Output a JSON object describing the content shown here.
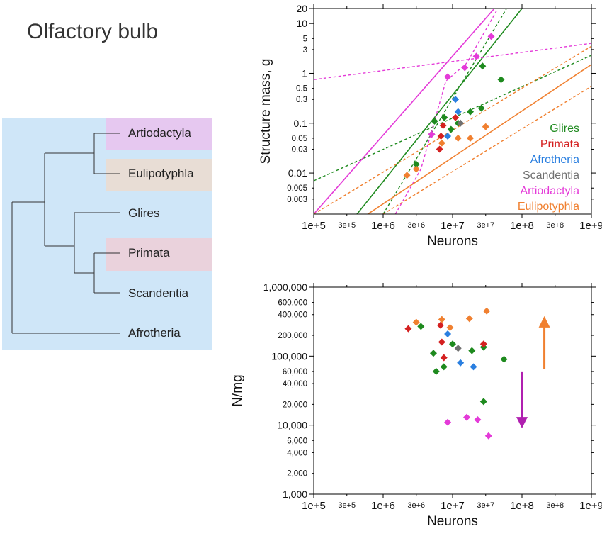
{
  "title": "Olfactory bulb",
  "tree": {
    "taxa": [
      "Artiodactyla",
      "Eulipotyphla",
      "Glires",
      "Primata",
      "Scandentia",
      "Afrotheria"
    ],
    "highlight_colors": {
      "Artiodactyla": "#e6c8f0",
      "Eulipotyphla": "#e8ddd5",
      "Primata": "#ead2dc"
    },
    "background": "#cfe6f8"
  },
  "chart_data": [
    {
      "type": "scatter",
      "id": "mass",
      "xlabel": "Neurons",
      "ylabel": "Structure mass, g",
      "xscale": "log",
      "yscale": "log",
      "xlim": [
        100000,
        1000000000
      ],
      "ylim": [
        0.0015,
        20
      ],
      "xticks": [
        {
          "v": 100000,
          "label": "1e+5",
          "major": true
        },
        {
          "v": 300000,
          "label": "3e+5",
          "major": false
        },
        {
          "v": 1000000,
          "label": "1e+6",
          "major": true
        },
        {
          "v": 3000000,
          "label": "3e+6",
          "major": false
        },
        {
          "v": 10000000,
          "label": "1e+7",
          "major": true
        },
        {
          "v": 30000000,
          "label": "3e+7",
          "major": false
        },
        {
          "v": 100000000,
          "label": "1e+8",
          "major": true
        },
        {
          "v": 300000000,
          "label": "3e+8",
          "major": false
        },
        {
          "v": 1000000000,
          "label": "1e+9",
          "major": true
        }
      ],
      "yticks": [
        {
          "v": 20,
          "label": "20",
          "major": true
        },
        {
          "v": 10,
          "label": "10",
          "major": true
        },
        {
          "v": 5,
          "label": "5",
          "major": false
        },
        {
          "v": 3,
          "label": "3",
          "major": false
        },
        {
          "v": 1,
          "label": "1",
          "major": true
        },
        {
          "v": 0.5,
          "label": "0.5",
          "major": false
        },
        {
          "v": 0.3,
          "label": "0.3",
          "major": false
        },
        {
          "v": 0.1,
          "label": "0.1",
          "major": true
        },
        {
          "v": 0.05,
          "label": "0.05",
          "major": false
        },
        {
          "v": 0.03,
          "label": "0.03",
          "major": false
        },
        {
          "v": 0.01,
          "label": "0.01",
          "major": true
        },
        {
          "v": 0.005,
          "label": "0.005",
          "major": false
        },
        {
          "v": 0.003,
          "label": "0.003",
          "major": false
        }
      ],
      "legend": {
        "position": "right",
        "entries": [
          {
            "name": "Glires",
            "color": "#1e8a1e"
          },
          {
            "name": "Primata",
            "color": "#d42020"
          },
          {
            "name": "Afrotheria",
            "color": "#2a7fe0"
          },
          {
            "name": "Scandentia",
            "color": "#707070"
          },
          {
            "name": "Artiodactyla",
            "color": "#e43ad8"
          },
          {
            "name": "Eulipotyphla",
            "color": "#f08030"
          }
        ]
      },
      "series": [
        {
          "name": "Glires",
          "color": "#1e8a1e",
          "points": [
            [
              3000000,
              0.015
            ],
            [
              5000000,
              0.06
            ],
            [
              5500000,
              0.11
            ],
            [
              7600000,
              0.13
            ],
            [
              9500000,
              0.075
            ],
            [
              12000000,
              0.1
            ],
            [
              18000000,
              0.17
            ],
            [
              26000000,
              0.2
            ],
            [
              27000000,
              1.4
            ],
            [
              50000000,
              0.75
            ]
          ]
        },
        {
          "name": "Primata",
          "color": "#d42020",
          "points": [
            [
              6500000,
              0.03
            ],
            [
              6800000,
              0.055
            ],
            [
              7300000,
              0.09
            ],
            [
              11000000,
              0.13
            ]
          ]
        },
        {
          "name": "Afrotheria",
          "color": "#2a7fe0",
          "points": [
            [
              8500000,
              0.055
            ],
            [
              11000000,
              0.3
            ],
            [
              12000000,
              0.17
            ]
          ]
        },
        {
          "name": "Scandentia",
          "color": "#707070",
          "points": [
            [
              13000000,
              0.1
            ]
          ]
        },
        {
          "name": "Artiodactyla",
          "color": "#e43ad8",
          "points": [
            [
              5000000,
              0.06
            ],
            [
              8500000,
              0.85
            ],
            [
              15000000,
              1.3
            ],
            [
              22000000,
              2.2
            ],
            [
              36000000,
              5.5
            ]
          ]
        },
        {
          "name": "Eulipotyphla",
          "color": "#f08030",
          "points": [
            [
              2200000,
              0.009
            ],
            [
              3000000,
              0.012
            ],
            [
              7000000,
              0.04
            ],
            [
              12000000,
              0.05
            ],
            [
              18000000,
              0.05
            ],
            [
              30000000,
              0.085
            ]
          ]
        }
      ],
      "fit_lines": [
        {
          "series": "Glires",
          "style": "solid",
          "points": [
            [
              420000,
              0.0015
            ],
            [
              100000000,
              20
            ]
          ]
        },
        {
          "series": "Glires",
          "style": "dashed",
          "points": [
            [
              100000,
              0.007
            ],
            [
              1000000000,
              2.3
            ]
          ]
        },
        {
          "series": "Glires",
          "style": "dashed",
          "points": [
            [
              1000000,
              0.0015
            ],
            [
              60000000,
              20
            ]
          ]
        },
        {
          "series": "Artiodactyla",
          "style": "solid",
          "points": [
            [
              100000,
              0.0015
            ],
            [
              40000000,
              20
            ]
          ]
        },
        {
          "series": "Artiodactyla",
          "style": "dashed",
          "points": [
            [
              100000,
              0.75
            ],
            [
              1000000000,
              4
            ]
          ]
        },
        {
          "series": "Artiodactyla",
          "style": "dashed",
          "points": [
            [
              1500000,
              0.0015
            ],
            [
              3500000,
              0.012
            ],
            [
              8000000,
              0.7
            ],
            [
              16000000,
              1.6
            ],
            [
              45000000,
              20
            ]
          ]
        },
        {
          "series": "Eulipotyphla",
          "style": "solid",
          "points": [
            [
              600000,
              0.0015
            ],
            [
              1000000000,
              1.5
            ]
          ]
        },
        {
          "series": "Eulipotyphla",
          "style": "dashed",
          "points": [
            [
              100000,
              0.0015
            ],
            [
              1000000000,
              3.5
            ]
          ]
        },
        {
          "series": "Eulipotyphla",
          "style": "dashed",
          "points": [
            [
              1000000,
              0.0015
            ],
            [
              1000000000,
              0.55
            ]
          ]
        }
      ]
    },
    {
      "type": "scatter",
      "id": "density",
      "xlabel": "Neurons",
      "ylabel": "N/mg",
      "xscale": "log",
      "yscale": "log",
      "xlim": [
        100000,
        1000000000
      ],
      "ylim": [
        1000,
        1000000
      ],
      "xticks": [
        {
          "v": 100000,
          "label": "1e+5",
          "major": true
        },
        {
          "v": 300000,
          "label": "3e+5",
          "major": false
        },
        {
          "v": 1000000,
          "label": "1e+6",
          "major": true
        },
        {
          "v": 3000000,
          "label": "3e+6",
          "major": false
        },
        {
          "v": 10000000,
          "label": "1e+7",
          "major": true
        },
        {
          "v": 30000000,
          "label": "3e+7",
          "major": false
        },
        {
          "v": 100000000,
          "label": "1e+8",
          "major": true
        },
        {
          "v": 300000000,
          "label": "3e+8",
          "major": false
        },
        {
          "v": 1000000000,
          "label": "1e+9",
          "major": true
        }
      ],
      "yticks": [
        {
          "v": 1000000,
          "label": "1,000,000",
          "major": true
        },
        {
          "v": 600000,
          "label": "600,000",
          "major": false
        },
        {
          "v": 400000,
          "label": "400,000",
          "major": false
        },
        {
          "v": 200000,
          "label": "200,000",
          "major": false
        },
        {
          "v": 100000,
          "label": "100,000",
          "major": true
        },
        {
          "v": 60000,
          "label": "60,000",
          "major": false
        },
        {
          "v": 40000,
          "label": "40,000",
          "major": false
        },
        {
          "v": 20000,
          "label": "20,000",
          "major": false
        },
        {
          "v": 10000,
          "label": "10,000",
          "major": true
        },
        {
          "v": 6000,
          "label": "6,000",
          "major": false
        },
        {
          "v": 4000,
          "label": "4,000",
          "major": false
        },
        {
          "v": 2000,
          "label": "2,000",
          "major": false
        },
        {
          "v": 1000,
          "label": "1,000",
          "major": true
        }
      ],
      "arrows": [
        {
          "color": "#f08030",
          "direction": "up",
          "x": 210000000,
          "y_from": 65000,
          "y_to": 380000
        },
        {
          "color": "#b020b0",
          "direction": "down",
          "x": 100000000,
          "y_from": 60000,
          "y_to": 9000
        }
      ],
      "series": [
        {
          "name": "Glires",
          "color": "#1e8a1e",
          "points": [
            [
              3500000,
              270000
            ],
            [
              5300000,
              110000
            ],
            [
              5800000,
              60000
            ],
            [
              7500000,
              70000
            ],
            [
              10000000,
              150000
            ],
            [
              19000000,
              120000
            ],
            [
              28000000,
              135000
            ],
            [
              28000000,
              22000
            ],
            [
              55000000,
              90000
            ]
          ]
        },
        {
          "name": "Primata",
          "color": "#d42020",
          "points": [
            [
              2300000,
              250000
            ],
            [
              6700000,
              280000
            ],
            [
              7000000,
              160000
            ],
            [
              7500000,
              95000
            ],
            [
              28000000,
              150000
            ]
          ]
        },
        {
          "name": "Afrotheria",
          "color": "#2a7fe0",
          "points": [
            [
              8500000,
              210000
            ],
            [
              13000000,
              80000
            ],
            [
              20000000,
              70000
            ]
          ]
        },
        {
          "name": "Scandentia",
          "color": "#707070",
          "points": [
            [
              12000000,
              130000
            ]
          ]
        },
        {
          "name": "Artiodactyla",
          "color": "#e43ad8",
          "points": [
            [
              8500000,
              11000
            ],
            [
              16000000,
              13000
            ],
            [
              23000000,
              12000
            ],
            [
              33000000,
              7000
            ]
          ]
        },
        {
          "name": "Eulipotyphla",
          "color": "#f08030",
          "points": [
            [
              3000000,
              310000
            ],
            [
              7000000,
              340000
            ],
            [
              9200000,
              260000
            ],
            [
              17500000,
              350000
            ],
            [
              31000000,
              450000
            ]
          ]
        }
      ]
    }
  ]
}
